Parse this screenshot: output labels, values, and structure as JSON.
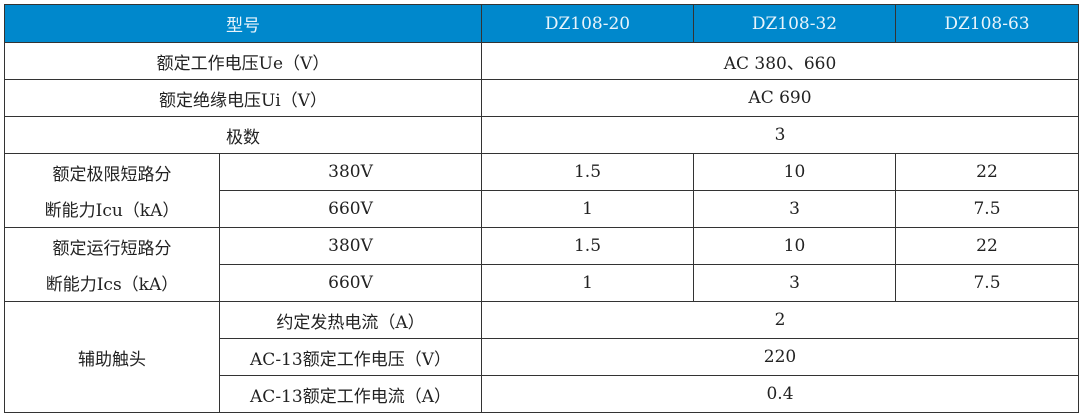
{
  "colors": {
    "header_bg": "#0088cc",
    "header_text": "#e8f4fb",
    "border": "#333333"
  },
  "header": {
    "model": "型号",
    "models": [
      "DZ108-20",
      "DZ108-32",
      "DZ108-63"
    ]
  },
  "rows": {
    "ue": {
      "label": "额定工作电压Ue（V）",
      "value": "AC 380、660"
    },
    "ui": {
      "label": "额定绝缘电压Ui（V）",
      "value": "AC 690"
    },
    "poles": {
      "label": "极数",
      "value": "3"
    },
    "icu": {
      "label_line1": "额定极限短路分",
      "label_line2": "断能力Icu（kA）",
      "rows": [
        {
          "voltage": "380V",
          "values": [
            "1.5",
            "10",
            "22"
          ]
        },
        {
          "voltage": "660V",
          "values": [
            "1",
            "3",
            "7.5"
          ]
        }
      ]
    },
    "ics": {
      "label_line1": "额定运行短路分",
      "label_line2": "断能力Ics（kA）",
      "rows": [
        {
          "voltage": "380V",
          "values": [
            "1.5",
            "10",
            "22"
          ]
        },
        {
          "voltage": "660V",
          "values": [
            "1",
            "3",
            "7.5"
          ]
        }
      ]
    },
    "aux": {
      "label": "辅助触头",
      "rows": [
        {
          "label": "约定发热电流（A）",
          "value": "2"
        },
        {
          "label": "AC-13额定工作电压（V）",
          "value": "220"
        },
        {
          "label": "AC-13额定工作电流（A）",
          "value": "0.4"
        }
      ]
    }
  }
}
